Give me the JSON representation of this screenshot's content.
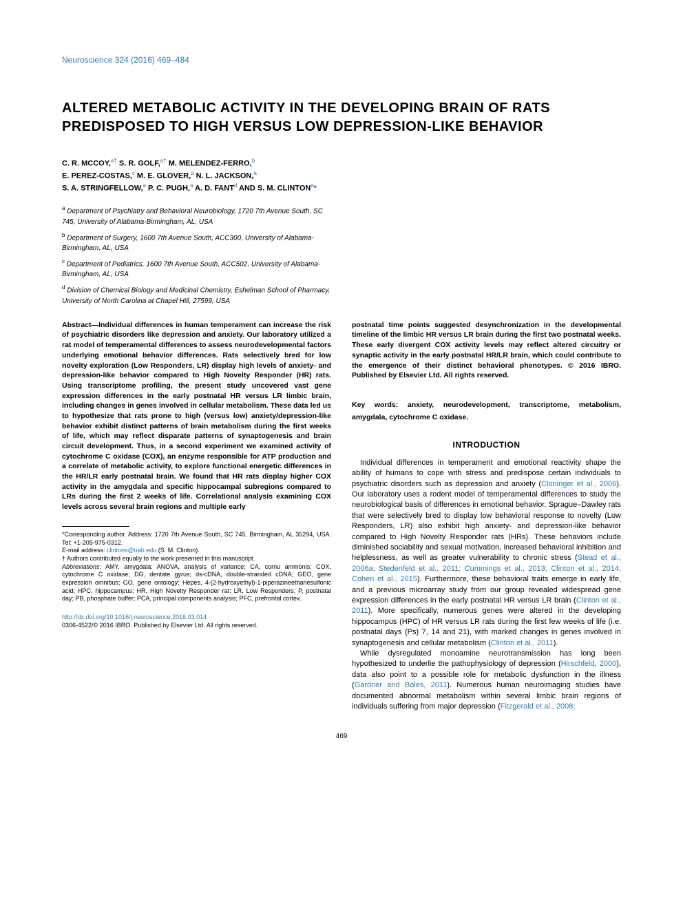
{
  "journal_header": "Neuroscience 324 (2016) 469–484",
  "title": "ALTERED METABOLIC ACTIVITY IN THE DEVELOPING BRAIN OF RATS PREDISPOSED TO HIGH VERSUS LOW DEPRESSION-LIKE BEHAVIOR",
  "authors_line1": "C. R. MCCOY,",
  "authors_sup1": "a†",
  "authors_line2": " S. R. GOLF,",
  "authors_sup2": "a†",
  "authors_line3": " M. MELENDEZ-FERRO,",
  "authors_sup3": "b",
  "authors_line4": "E. PEREZ-COSTAS,",
  "authors_sup4": "c",
  "authors_line5": " M. E. GLOVER,",
  "authors_sup5": "a",
  "authors_line6": " N. L. JACKSON,",
  "authors_sup6": "a",
  "authors_line7": "S. A. STRINGFELLOW,",
  "authors_sup7": "a",
  "authors_line8": " P. C. PUGH,",
  "authors_sup8": "a",
  "authors_line9": " A. D. FANT",
  "authors_sup9": "d",
  "authors_line10": " AND S. M. CLINTON",
  "authors_sup10": "a",
  "authors_asterisk": "*",
  "affiliations": {
    "a_sup": "a",
    "a": "Department of Psychiatry and Behavioral Neurobiology, 1720 7th Avenue South, SC 745, University of Alabama-Birmingham, AL, USA",
    "b_sup": "b",
    "b": "Department of Surgery, 1600 7th Avenue South, ACC300, University of Alabama-Birmingham, AL, USA",
    "c_sup": "c",
    "c": "Department of Pediatrics, 1600 7th Avenue South, ACC502, University of Alabama-Birmingham, AL, USA",
    "d_sup": "d",
    "d": "Division of Chemical Biology and Medicinal Chemistry, Eshelman School of Pharmacy, University of North Carolina at Chapel Hill, 27599, USA"
  },
  "abstract_left": "Abstract—Individual differences in human temperament can increase the risk of psychiatric disorders like depression and anxiety. Our laboratory utilized a rat model of temperamental differences to assess neurodevelopmental factors underlying emotional behavior differences. Rats selectively bred for low novelty exploration (Low Responders, LR) display high levels of anxiety- and depression-like behavior compared to High Novelty Responder (HR) rats. Using transcriptome profiling, the present study uncovered vast gene expression differences in the early postnatal HR versus LR limbic brain, including changes in genes involved in cellular metabolism. These data led us to hypothesize that rats prone to high (versus low) anxiety/depression-like behavior exhibit distinct patterns of brain metabolism during the first weeks of life, which may reflect disparate patterns of synaptogenesis and brain circuit development. Thus, in a second experiment we examined activity of cytochrome C oxidase (COX), an enzyme responsible for ATP production and a correlate of metabolic activity, to explore functional energetic differences in the HR/LR early postnatal brain. We found that HR rats display higher COX activity in the amygdala and specific hippocampal subregions compared to LRs during the first 2 weeks of life. Correlational analysis examining COX levels across several brain regions and multiple early",
  "abstract_right": "postnatal time points suggested desynchronization in the developmental timeline of the limbic HR versus LR brain during the first two postnatal weeks. These early divergent COX activity levels may reflect altered circuitry or synaptic activity in the early postnatal HR/LR brain, which could contribute to the emergence of their distinct behavioral phenotypes. © 2016 IBRO. Published by Elsevier Ltd. All rights reserved.",
  "keywords_label": "Key words: ",
  "keywords": "anxiety, neurodevelopment, transcriptome, metabolism, amygdala, cytochrome C oxidase.",
  "introduction_heading": "INTRODUCTION",
  "intro_p1_a": "Individual differences in temperament and emotional reactivity shape the ability of humans to cope with stress and predispose certain individuals to psychiatric disorders such as depression and anxiety (",
  "intro_p1_cite1": "Cloninger et al., 2006",
  "intro_p1_b": "). Our laboratory uses a rodent model of temperamental differences to study the neurobiological basis of differences in emotional behavior. Sprague–Dawley rats that were selectively bred to display low behavioral response to novelty (Low Responders, LR) also exhibit high anxiety- and depression-like behavior compared to High Novelty Responder rats (HRs). These behaviors include diminished sociability and sexual motivation, increased behavioral inhibition and helplessness, as well as greater vulnerability to chronic stress (",
  "intro_p1_cite2": "Stead et al., 2006a; Stedenfeld et al., 2011; Cummings et al., 2013; Clinton et al., 2014; Cohen et al., 2015",
  "intro_p1_c": "). Furthermore, these behavioral traits emerge in early life, and a previous microarray study from our group revealed widespread gene expression differences in the early postnatal HR versus LR brain (",
  "intro_p1_cite3": "Clinton et al., 2011",
  "intro_p1_d": "). More specifically, numerous genes were altered in the developing hippocampus (HPC) of HR versus LR rats during the first few weeks of life (i.e. postnatal days (Ps) 7, 14 and 21), with marked changes in genes involved in synaptogenesis and cellular metabolism (",
  "intro_p1_cite4": "Clinton et al., 2011",
  "intro_p1_e": ").",
  "intro_p2_a": "While dysregulated monoamine neurotransmission has long been hypothesized to underlie the pathophysiology of depression (",
  "intro_p2_cite1": "Hirschfeld, 2000",
  "intro_p2_b": "), data also point to a possible role for metabolic dysfunction in the illness (",
  "intro_p2_cite2": "Gardner and Boles, 2011",
  "intro_p2_c": "). Numerous human neuroimaging studies have documented abnormal metabolism within several limbic brain regions of individuals suffering from major depression (",
  "intro_p2_cite3": "Fitzgerald et al., 2008;",
  "footnotes": {
    "corresponding": "*Corresponding author. Address: 1720 7th Avenue South, SC 745, Birmingham, AL 35294, USA. Tel: +1-205-975-0312.",
    "email_label": "E-mail address: ",
    "email": "clintons@uab.edu",
    "email_name": " (S. M. Clinton).",
    "dagger": "† Authors contributed equally to the work presented in this manuscript.",
    "abbreviations_label": "Abbreviations:",
    "abbreviations": " AMY, amygdala; ANOVA, analysis of variance; CA, cornu ammonis; COX, cytochrome C oxidase; DG, dentate gyrus; ds-cDNA, double-stranded cDNA; GEO, gene expression omnibus; GO, gene ontology; Hepes, 4-(2-hydroxyethyl)-1-piperazineethanesulfonic acid; HPC, hippocampus; HR, High Novelty Responder rat; LR, Low Responders; P, postnatal day; PB, phosphate buffer; PCA, principal components analysis; PFC, prefrontal cortex."
  },
  "doi": "http://dx.doi.org/10.1016/j.neuroscience.2016.03.014",
  "copyright": "0306-4522/© 2016 IBRO. Published by Elsevier Ltd. All rights reserved.",
  "page_number": "469"
}
